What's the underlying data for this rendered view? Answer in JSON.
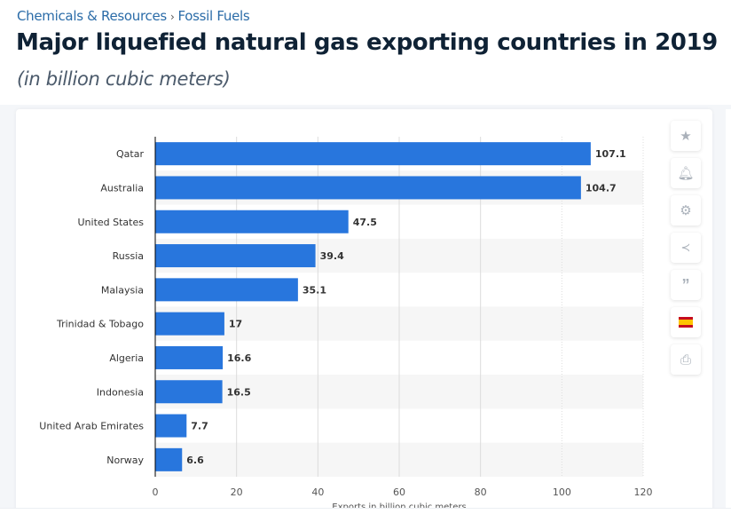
{
  "breadcrumb": {
    "items": [
      "Chemicals & Resources",
      "Fossil Fuels"
    ],
    "separator": "›"
  },
  "header": {
    "title": "Major liquefied natural gas exporting countries in 2019",
    "subtitle": "(in billion cubic meters)"
  },
  "toolbar": {
    "icons": [
      "star-icon",
      "bell-icon",
      "gear-icon",
      "share-icon",
      "quote-icon",
      "spain-flag-icon",
      "print-icon"
    ]
  },
  "colors": {
    "bar": "#2876dd",
    "accent": "#2b6ca8"
  },
  "chart_data": {
    "type": "bar",
    "orientation": "horizontal",
    "categories": [
      "Qatar",
      "Australia",
      "United States",
      "Russia",
      "Malaysia",
      "Trinidad & Tobago",
      "Algeria",
      "Indonesia",
      "United Arab Emirates",
      "Norway"
    ],
    "values": [
      107.1,
      104.7,
      47.5,
      39.4,
      35.1,
      17,
      16.6,
      16.5,
      7.7,
      6.6
    ],
    "value_labels": [
      "107.1",
      "104.7",
      "47.5",
      "39.4",
      "35.1",
      "17",
      "16.6",
      "16.5",
      "7.7",
      "6.6"
    ],
    "xlabel": "Exports in billion cubic meters",
    "xlim": [
      0,
      120
    ],
    "xticks": [
      "0",
      "20",
      "40",
      "60",
      "80",
      "100",
      "120"
    ],
    "grid": true
  }
}
